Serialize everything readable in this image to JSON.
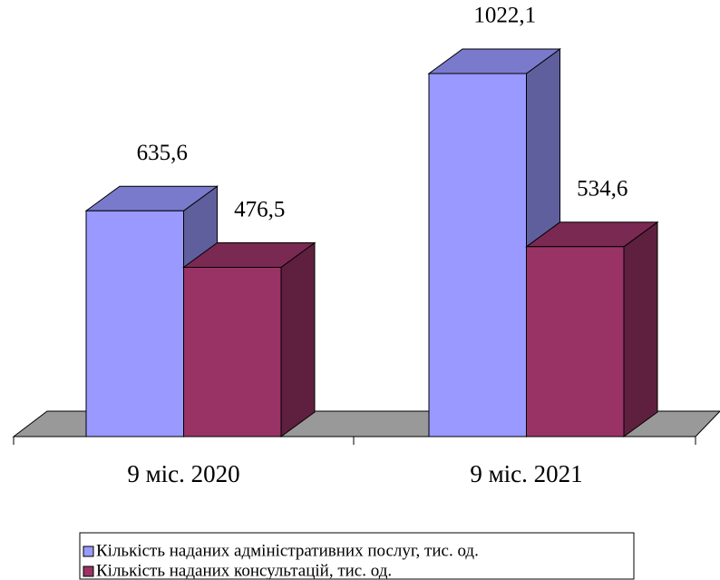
{
  "chart_data": {
    "type": "bar3d",
    "categories": [
      "9 міс. 2020",
      "9 міс. 2021"
    ],
    "series": [
      {
        "name": "Кількість наданих адміністративних послуг, тис. од.",
        "color": "#9999ff",
        "values": [
          635.6,
          1022.1
        ],
        "value_labels": [
          "635,6",
          "1022,1"
        ]
      },
      {
        "name": "Кількість наданих консультацій, тис. од.",
        "color": "#993366",
        "values": [
          476.5,
          534.6
        ],
        "value_labels": [
          "476,5",
          "534,6"
        ]
      }
    ]
  }
}
